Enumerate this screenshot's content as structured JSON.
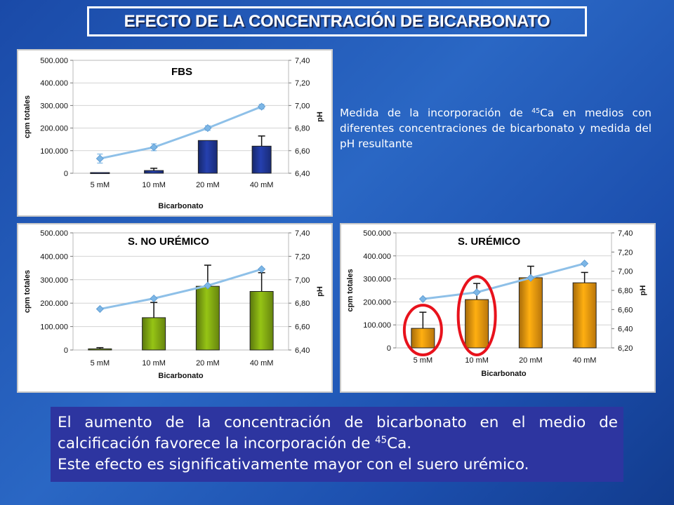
{
  "slide_title": "EFECTO DE LA CONCENTRACIÓN DE BICARBONATO",
  "description": {
    "part1": "Medida de la incorporación de ",
    "isotope_sup": "45",
    "isotope_el": "Ca",
    "part2": " en medios con diferentes concentraciones de bicarbonato y medida del pH resultante"
  },
  "conclusion": {
    "line1": "El aumento de la concentración de bicarbonato en el medio de calcificación favorece la incorporación de ",
    "isotope_sup": "45",
    "isotope_el": "Ca.",
    "line2": "Este efecto es significativamente mayor con el suero urémico."
  },
  "highlight_color": "#e8121c",
  "chart_data": [
    {
      "type": "bar",
      "title": "FBS",
      "categories": [
        "5 mM",
        "10 mM",
        "20 mM",
        "40 mM"
      ],
      "xlabel": "Bicarbonato",
      "ylabel": "cpm totales",
      "y2label": "pH",
      "ylim": [
        0,
        500000
      ],
      "yticks": [
        "0",
        "100.000",
        "200.000",
        "300.000",
        "400.000",
        "500.000"
      ],
      "y2lim": [
        6.4,
        7.4
      ],
      "y2ticks": [
        "6,40",
        "6,60",
        "6,80",
        "7,00",
        "7,20",
        "7,40"
      ],
      "grid": true,
      "bar_color": "#1f3694",
      "line_color": "#8ec0e8",
      "series": [
        {
          "kind": "bar",
          "values": [
            3000,
            12000,
            145000,
            120000
          ],
          "errors": [
            0,
            10000,
            0,
            45000
          ]
        },
        {
          "kind": "line",
          "values": [
            6.53,
            6.63,
            6.8,
            6.99
          ],
          "errors": [
            0.04,
            0.03,
            0.02,
            0.02
          ]
        }
      ],
      "highlighted_categories": []
    },
    {
      "type": "bar",
      "title": "S. NO URÉMICO",
      "categories": [
        "5 mM",
        "10 mM",
        "20 mM",
        "40 mM"
      ],
      "xlabel": "Bicarbonato",
      "ylabel": "cpm totales",
      "y2label": "pH",
      "ylim": [
        0,
        500000
      ],
      "yticks": [
        "0",
        "100.000",
        "200.000",
        "300.000",
        "400.000",
        "500.000"
      ],
      "y2lim": [
        6.4,
        7.4
      ],
      "y2ticks": [
        "6,40",
        "6,60",
        "6,80",
        "7,00",
        "7,20",
        "7,40"
      ],
      "grid": true,
      "bar_color": "#7fa612",
      "line_color": "#8ec0e8",
      "series": [
        {
          "kind": "bar",
          "values": [
            5000,
            138000,
            272000,
            250000
          ],
          "errors": [
            5000,
            65000,
            90000,
            80000
          ]
        },
        {
          "kind": "line",
          "values": [
            6.75,
            6.84,
            6.95,
            7.09
          ],
          "errors": [
            0,
            0,
            0,
            0
          ]
        }
      ],
      "highlighted_categories": []
    },
    {
      "type": "bar",
      "title": "S. URÉMICO",
      "categories": [
        "5 mM",
        "10 mM",
        "20 mM",
        "40 mM"
      ],
      "xlabel": "Bicarbonato",
      "ylabel": "cpm totales",
      "y2label": "pH",
      "ylim": [
        0,
        500000
      ],
      "yticks": [
        "0",
        "100.000",
        "200.000",
        "300.000",
        "400.000",
        "500.000"
      ],
      "y2lim": [
        6.2,
        7.4
      ],
      "y2ticks": [
        "6,20",
        "6,40",
        "6,60",
        "6,80",
        "7,00",
        "7,20",
        "7,40"
      ],
      "grid": true,
      "bar_color": "#e8940e",
      "line_color": "#8ec0e8",
      "series": [
        {
          "kind": "bar",
          "values": [
            85000,
            210000,
            305000,
            283000
          ],
          "errors": [
            70000,
            70000,
            50000,
            45000
          ]
        },
        {
          "kind": "line",
          "values": [
            6.71,
            6.78,
            6.93,
            7.08
          ],
          "errors": [
            0,
            0,
            0,
            0
          ]
        }
      ],
      "highlighted_categories": [
        "5 mM",
        "10 mM"
      ]
    }
  ]
}
